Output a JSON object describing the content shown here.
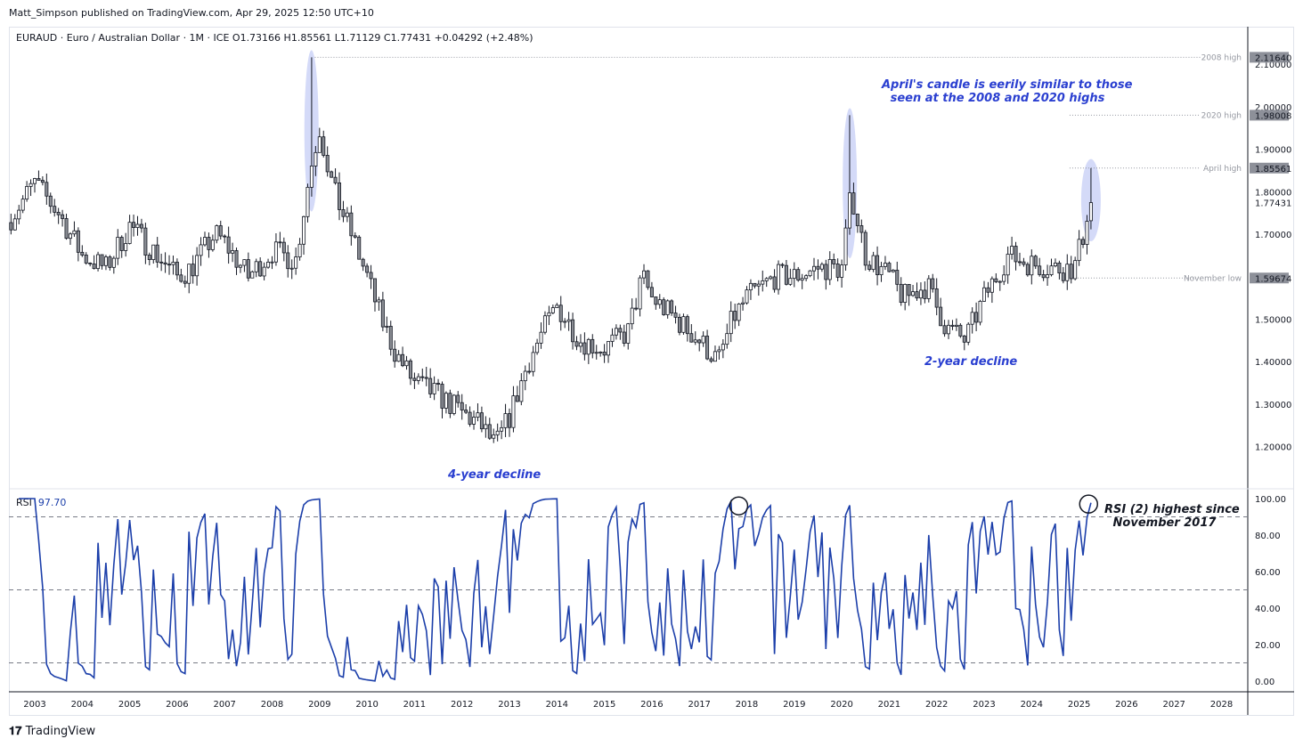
{
  "header": {
    "published": "Matt_Simpson published on TradingView.com, Apr 29, 2025 12:50 UTC+10",
    "legend": "EURAUD · Euro / Australian Dollar · 1M · ICE  O1.73166  H1.85561  L1.71129  C1.77431  +0.04292 (+2.48%)"
  },
  "rsi_label": "RSI",
  "rsi_value": "97.70",
  "footer": "TradingView",
  "annotations": {
    "candle_note_1": "April's candle is eerily similar to those",
    "candle_note_2": "seen at the 2008 and 2020 highs",
    "decline_4y": "4-year decline",
    "decline_2y": "2-year decline",
    "rsi_note_1": "RSI (2) highest since",
    "rsi_note_2": "November 2017"
  },
  "colors": {
    "up": "#ffffff",
    "down": "#8a8d94",
    "rsi": "#1c3faa",
    "annotation": "#2a3fd0",
    "highlight": "#c5cdf5"
  },
  "chart_data": {
    "type": "candlestick",
    "symbol": "EURAUD",
    "interval": "1M",
    "price_ticks": [
      "1.20000",
      "1.30000",
      "1.40000",
      "1.50000",
      "1.70000",
      "1.80000",
      "1.90000",
      "2.00000",
      "2.10000"
    ],
    "price_tick_values": [
      1.2,
      1.3,
      1.4,
      1.5,
      1.7,
      1.8,
      1.9,
      2.0,
      2.1
    ],
    "ylim": [
      1.1,
      2.16
    ],
    "levels": [
      {
        "label": "2008 high",
        "value": 2.1164,
        "text": "2.11640"
      },
      {
        "label": "2020 high",
        "value": 1.98008,
        "text": "1.98008"
      },
      {
        "label": "April high",
        "value": 1.85561,
        "text": "1.85561"
      },
      {
        "label": "November low",
        "value": 1.59674,
        "text": "1.59674"
      }
    ],
    "last_price": {
      "value": 1.77431,
      "text": "1.77431"
    },
    "close_anchors": [
      [
        2002.5,
        1.74
      ],
      [
        2003.0,
        1.82
      ],
      [
        2003.5,
        1.75
      ],
      [
        2004.0,
        1.65
      ],
      [
        2004.5,
        1.62
      ],
      [
        2005.0,
        1.72
      ],
      [
        2005.5,
        1.66
      ],
      [
        2006.0,
        1.6
      ],
      [
        2006.3,
        1.62
      ],
      [
        2006.8,
        1.7
      ],
      [
        2007.0,
        1.68
      ],
      [
        2007.5,
        1.6
      ],
      [
        2008.0,
        1.66
      ],
      [
        2008.5,
        1.64
      ],
      [
        2008.8,
        1.85
      ],
      [
        2009.0,
        1.95
      ],
      [
        2009.3,
        1.8
      ],
      [
        2009.6,
        1.72
      ],
      [
        2010.0,
        1.6
      ],
      [
        2010.3,
        1.5
      ],
      [
        2010.6,
        1.42
      ],
      [
        2011.0,
        1.35
      ],
      [
        2011.5,
        1.32
      ],
      [
        2012.0,
        1.28
      ],
      [
        2012.4,
        1.25
      ],
      [
        2012.7,
        1.2
      ],
      [
        2013.0,
        1.27
      ],
      [
        2013.4,
        1.4
      ],
      [
        2013.7,
        1.47
      ],
      [
        2014.0,
        1.53
      ],
      [
        2014.5,
        1.45
      ],
      [
        2015.0,
        1.43
      ],
      [
        2015.5,
        1.47
      ],
      [
        2015.8,
        1.6
      ],
      [
        2016.0,
        1.55
      ],
      [
        2016.5,
        1.5
      ],
      [
        2017.0,
        1.45
      ],
      [
        2017.4,
        1.4
      ],
      [
        2017.7,
        1.5
      ],
      [
        2018.0,
        1.55
      ],
      [
        2018.6,
        1.6
      ],
      [
        2019.0,
        1.6
      ],
      [
        2019.5,
        1.62
      ],
      [
        2020.0,
        1.62
      ],
      [
        2020.2,
        1.8
      ],
      [
        2020.5,
        1.65
      ],
      [
        2021.0,
        1.6
      ],
      [
        2021.3,
        1.55
      ],
      [
        2021.8,
        1.58
      ],
      [
        2022.2,
        1.48
      ],
      [
        2022.6,
        1.45
      ],
      [
        2023.0,
        1.55
      ],
      [
        2023.5,
        1.65
      ],
      [
        2024.0,
        1.63
      ],
      [
        2024.5,
        1.62
      ],
      [
        2024.9,
        1.62
      ],
      [
        2025.17,
        1.73166
      ],
      [
        2025.25,
        1.77431
      ]
    ],
    "high_overrides": [
      [
        2008.83,
        2.1164
      ],
      [
        2020.17,
        1.98008
      ],
      [
        2025.25,
        1.85561
      ]
    ],
    "rsi": {
      "period": 2,
      "ticks": [
        "0.00",
        "20.00",
        "40.00",
        "60.00",
        "80.00",
        "100.00"
      ],
      "tick_values": [
        0,
        20,
        40,
        60,
        80,
        100
      ],
      "levels": [
        10,
        50,
        90
      ],
      "current": 97.7
    },
    "x_ticks": [
      "2003",
      "2004",
      "2005",
      "2006",
      "2007",
      "2008",
      "2009",
      "2010",
      "2011",
      "2012",
      "2013",
      "2014",
      "2015",
      "2016",
      "2017",
      "2018",
      "2019",
      "2020",
      "2021",
      "2022",
      "2023",
      "2024",
      "2025",
      "2026",
      "2027",
      "2028"
    ]
  }
}
